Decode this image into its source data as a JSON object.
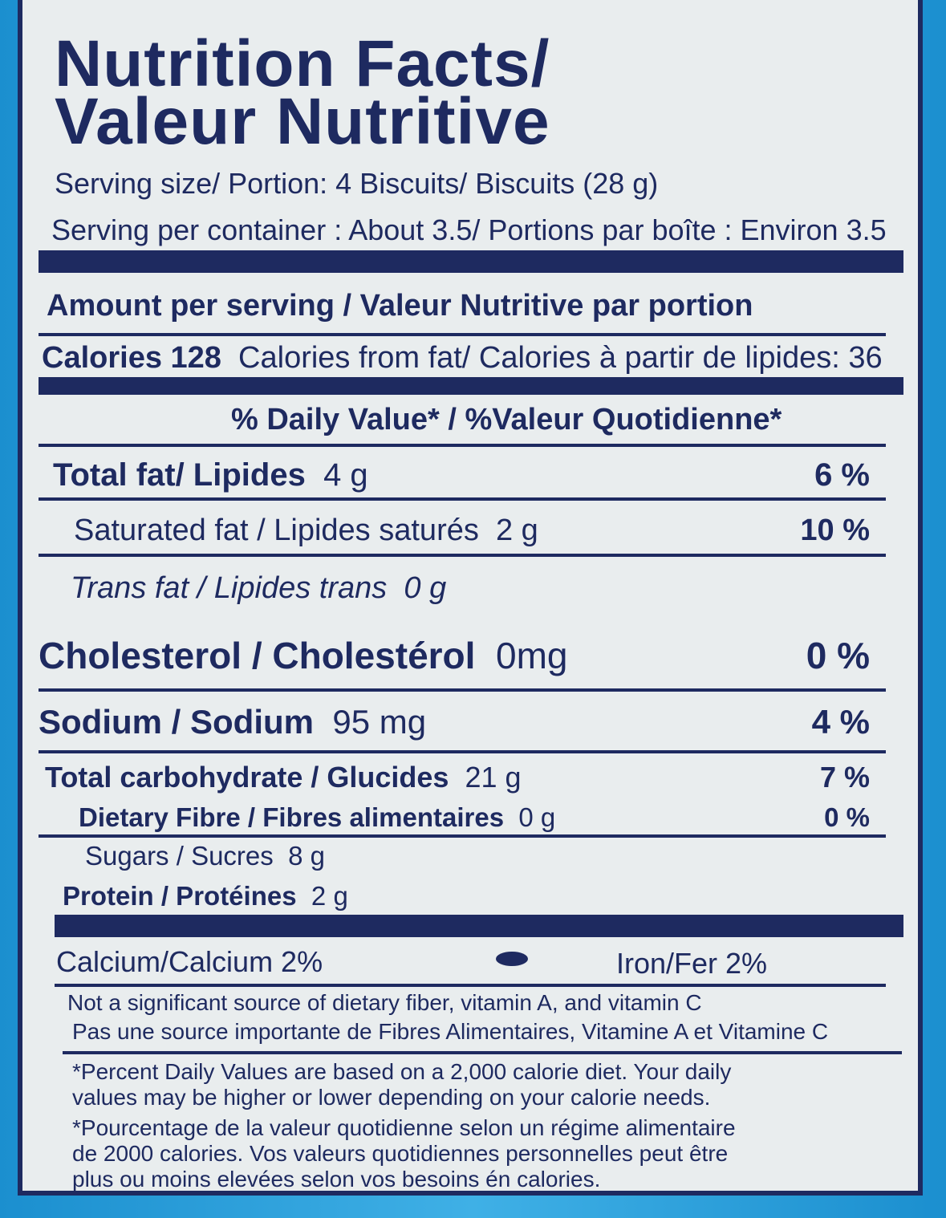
{
  "title": {
    "line1": "Nutrition Facts/",
    "line2": "Valeur Nutritive"
  },
  "serving": {
    "size": "Serving size/ Portion: 4 Biscuits/ Biscuits (28 g)",
    "per_container": "Serving per container : About 3.5/ Portions par boîte : Environ 3.5"
  },
  "amount_header": "Amount per serving / Valeur Nutritive par portion",
  "calories": {
    "label": "Calories 128",
    "from_fat": "Calories from fat/ Calories à partir de lipides: 36"
  },
  "dv_header": "% Daily Value*  /  %Valeur Quotidienne*",
  "nutrients": [
    {
      "label": "Total fat/ Lipides",
      "amount": "4 g",
      "dv": "6 %"
    },
    {
      "label": "Saturated fat / Lipides saturés",
      "amount": "2 g",
      "dv": "10 %"
    },
    {
      "label": "Trans fat / Lipides trans",
      "amount": "0 g",
      "dv": ""
    },
    {
      "label": "Cholesterol / Cholestérol",
      "amount": "0mg",
      "dv": "0 %"
    },
    {
      "label": "Sodium / Sodium",
      "amount": "95 mg",
      "dv": "4 %"
    },
    {
      "label": "Total carbohydrate / Glucides",
      "amount": "21 g",
      "dv": "7 %"
    },
    {
      "label": "Dietary Fibre / Fibres alimentaires",
      "amount": "0 g",
      "dv": "0 %"
    },
    {
      "label": "Sugars / Sucres",
      "amount": "8 g",
      "dv": ""
    },
    {
      "label": "Protein / Protéines",
      "amount": "2 g",
      "dv": ""
    }
  ],
  "vitamins": {
    "calcium": "Calcium/Calcium 2%",
    "iron": "Iron/Fer 2%"
  },
  "not_significant": {
    "en": "Not a significant source of dietary fiber, vitamin A, and vitamin C",
    "fr": "Pas une source importante de Fibres Alimentaires, Vitamine A et Vitamine C"
  },
  "footnote": {
    "en1": "*Percent Daily Values are based on a 2,000 calorie diet. Your daily",
    "en2": "values may be higher or lower depending on your calorie needs.",
    "fr1": "*Pourcentage de la valeur quotidienne selon un régime alimentaire",
    "fr2": "de 2000 calories. Vos valeurs quotidiennes personnelles peut être",
    "fr3": "plus ou moins elevées selon vos  besoins én calories."
  },
  "colors": {
    "ink": "#1e2a60",
    "paper": "#e9edee",
    "package": "#1b8fcf"
  }
}
